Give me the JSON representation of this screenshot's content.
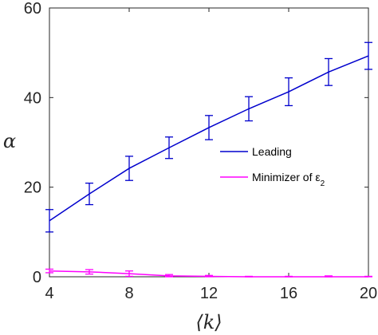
{
  "chart_data": {
    "type": "line",
    "xlabel": "⟨k⟩",
    "ylabel": "α",
    "xlim": [
      4,
      20
    ],
    "ylim": [
      0,
      60
    ],
    "xticks": [
      4,
      8,
      12,
      16,
      20
    ],
    "yticks": [
      0,
      20,
      40,
      60
    ],
    "xtick_labels": [
      "4",
      "8",
      "12",
      "16",
      "20"
    ],
    "ytick_labels": [
      "0",
      "20",
      "40",
      "60"
    ],
    "grid": false,
    "legend_position": "center-right",
    "series": [
      {
        "name": "Leading",
        "color": "#0000cd",
        "x": [
          4,
          6,
          8,
          10,
          12,
          14,
          16,
          18,
          20
        ],
        "y": [
          12.5,
          18.5,
          24.2,
          28.8,
          33.3,
          37.5,
          41.3,
          45.7,
          49.3
        ],
        "err": [
          2.5,
          2.4,
          2.7,
          2.4,
          2.7,
          2.7,
          3.1,
          3.0,
          3.0
        ]
      },
      {
        "name": "Minimizer of ε",
        "name_subscript": "2",
        "color": "#ff00ff",
        "x": [
          4,
          6,
          8,
          10,
          12,
          14,
          16,
          18,
          20
        ],
        "y": [
          1.3,
          1.1,
          0.7,
          0.2,
          0.1,
          0.0,
          0.0,
          0.0,
          0.0
        ],
        "err": [
          0.4,
          0.5,
          0.6,
          0.3,
          0.2,
          0.1,
          0.1,
          0.2,
          0.1
        ]
      }
    ]
  }
}
